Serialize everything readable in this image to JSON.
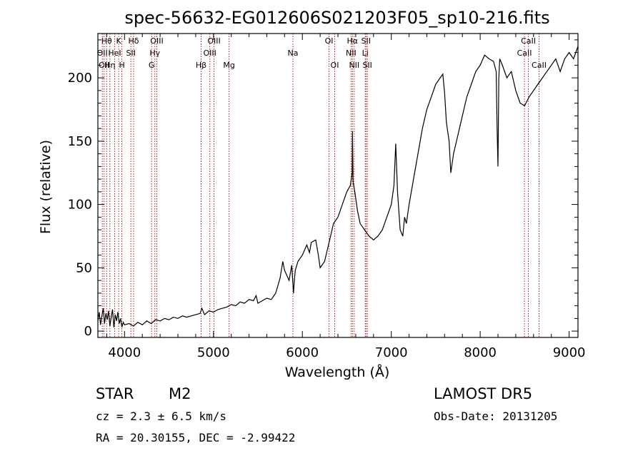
{
  "chart_data": {
    "type": "line",
    "title": "spec-56632-EG012606S021203F05_sp10-216.fits",
    "xlabel": "Wavelength (Å)",
    "ylabel": "Flux (relative)",
    "xlim": [
      3700,
      9100
    ],
    "ylim": [
      -5,
      235
    ],
    "xticks": [
      4000,
      5000,
      6000,
      7000,
      8000,
      9000
    ],
    "yticks": [
      0,
      50,
      100,
      150,
      200
    ],
    "grid": false,
    "series": [
      {
        "color": "#000000",
        "x": [
          3700,
          3715,
          3730,
          3745,
          3760,
          3775,
          3790,
          3805,
          3820,
          3835,
          3850,
          3865,
          3880,
          3895,
          3910,
          3925,
          3940,
          3955,
          3970,
          3985,
          4000,
          4050,
          4100,
          4150,
          4200,
          4250,
          4300,
          4350,
          4400,
          4450,
          4500,
          4550,
          4600,
          4650,
          4700,
          4750,
          4800,
          4850,
          4870,
          4900,
          4950,
          5000,
          5050,
          5100,
          5150,
          5200,
          5250,
          5300,
          5350,
          5400,
          5450,
          5480,
          5500,
          5550,
          5600,
          5650,
          5700,
          5750,
          5780,
          5800,
          5850,
          5880,
          5900,
          5910,
          5920,
          5950,
          6000,
          6050,
          6080,
          6100,
          6150,
          6180,
          6200,
          6250,
          6300,
          6350,
          6400,
          6450,
          6500,
          6540,
          6560,
          6563,
          6570,
          6590,
          6620,
          6650,
          6700,
          6750,
          6800,
          6850,
          6900,
          6950,
          7000,
          7030,
          7050,
          7070,
          7100,
          7130,
          7150,
          7170,
          7200,
          7250,
          7300,
          7350,
          7400,
          7450,
          7500,
          7550,
          7580,
          7600,
          7620,
          7650,
          7670,
          7700,
          7750,
          7800,
          7850,
          7900,
          7950,
          8000,
          8050,
          8100,
          8150,
          8180,
          8190,
          8200,
          8210,
          8220,
          8250,
          8300,
          8350,
          8400,
          8450,
          8500,
          8550,
          8600,
          8650,
          8700,
          8750,
          8800,
          8850,
          8900,
          8950,
          9000,
          9050,
          9100
        ],
        "y": [
          8,
          15,
          5,
          12,
          18,
          6,
          14,
          9,
          16,
          4,
          11,
          17,
          3,
          13,
          8,
          15,
          6,
          10,
          3,
          7,
          5,
          6,
          4,
          7,
          5,
          8,
          6,
          9,
          8,
          10,
          9,
          11,
          10,
          12,
          11,
          12,
          13,
          14,
          18,
          13,
          16,
          15,
          17,
          18,
          19,
          21,
          20,
          23,
          22,
          25,
          24,
          28,
          22,
          24,
          26,
          25,
          30,
          42,
          55,
          48,
          40,
          52,
          30,
          40,
          48,
          55,
          60,
          68,
          62,
          70,
          72,
          60,
          50,
          55,
          70,
          85,
          90,
          100,
          110,
          115,
          125,
          158,
          118,
          110,
          95,
          85,
          80,
          75,
          72,
          75,
          80,
          90,
          100,
          115,
          148,
          110,
          80,
          75,
          90,
          85,
          100,
          120,
          140,
          160,
          175,
          185,
          195,
          200,
          203,
          188,
          165,
          150,
          125,
          140,
          155,
          170,
          185,
          195,
          205,
          210,
          218,
          215,
          213,
          205,
          160,
          130,
          200,
          215,
          210,
          200,
          205,
          190,
          180,
          178,
          185,
          190,
          195,
          200,
          205,
          210,
          215,
          205,
          215,
          220,
          215,
          225
        ]
      }
    ],
    "line_markers": [
      {
        "x": 3750,
        "labels": [
          "OII"
        ]
      },
      {
        "x": 3770,
        "labels": [
          "OII"
        ]
      },
      {
        "x": 3798,
        "labels": [
          "Hθ"
        ]
      },
      {
        "x": 3835,
        "labels": [
          "Hη"
        ]
      },
      {
        "x": 3889,
        "labels": [
          "HeI"
        ]
      },
      {
        "x": 3934,
        "labels": [
          "K"
        ]
      },
      {
        "x": 3970,
        "labels": [
          "H"
        ]
      },
      {
        "x": 4071,
        "labels": [
          "SII"
        ]
      },
      {
        "x": 4102,
        "labels": [
          "Hδ"
        ]
      },
      {
        "x": 4304,
        "labels": [
          "G"
        ]
      },
      {
        "x": 4341,
        "labels": [
          "Hγ"
        ]
      },
      {
        "x": 4363,
        "labels": [
          "OIII"
        ]
      },
      {
        "x": 4861,
        "labels": [
          "Hβ"
        ]
      },
      {
        "x": 4959,
        "labels": [
          "OIII"
        ]
      },
      {
        "x": 5007,
        "labels": [
          "OIII"
        ]
      },
      {
        "x": 5175,
        "labels": [
          "Mg"
        ]
      },
      {
        "x": 5894,
        "labels": [
          "Na"
        ]
      },
      {
        "x": 6300,
        "labels": [
          "OI"
        ]
      },
      {
        "x": 6364,
        "labels": [
          "OI"
        ]
      },
      {
        "x": 6548,
        "labels": [
          "NII"
        ]
      },
      {
        "x": 6563,
        "labels": [
          "Hα"
        ]
      },
      {
        "x": 6583,
        "labels": [
          "NII"
        ]
      },
      {
        "x": 6707,
        "labels": [
          "Li"
        ]
      },
      {
        "x": 6716,
        "labels": [
          "SII"
        ]
      },
      {
        "x": 6731,
        "labels": [
          "SII"
        ]
      },
      {
        "x": 8498,
        "labels": [
          "CaII"
        ]
      },
      {
        "x": 8542,
        "labels": [
          "CaII"
        ]
      },
      {
        "x": 8662,
        "labels": [
          "CaII"
        ]
      }
    ],
    "marker_labels": [
      {
        "text": "Hθ",
        "x": 3798,
        "row": 0
      },
      {
        "text": "K",
        "x": 3934,
        "row": 0
      },
      {
        "text": "Hδ",
        "x": 4102,
        "row": 0
      },
      {
        "text": "OIII",
        "x": 4363,
        "row": 0
      },
      {
        "text": "OIII",
        "x": 5007,
        "row": 0
      },
      {
        "text": "OI",
        "x": 6300,
        "row": 0
      },
      {
        "text": "Hα",
        "x": 6563,
        "row": 0
      },
      {
        "text": "SII",
        "x": 6716,
        "row": 0
      },
      {
        "text": "CaII",
        "x": 8542,
        "row": 0
      },
      {
        "text": "OII",
        "x": 3750,
        "row": 1
      },
      {
        "text": "HeI",
        "x": 3889,
        "row": 1
      },
      {
        "text": "SII",
        "x": 4071,
        "row": 1
      },
      {
        "text": "Hγ",
        "x": 4341,
        "row": 1
      },
      {
        "text": "OIII",
        "x": 4959,
        "row": 1
      },
      {
        "text": "NII",
        "x": 6548,
        "row": 1
      },
      {
        "text": "Li",
        "x": 6707,
        "row": 1
      },
      {
        "text": "CaII",
        "x": 8498,
        "row": 1
      },
      {
        "text": "OII",
        "x": 3770,
        "row": 2
      },
      {
        "text": "Hη",
        "x": 3835,
        "row": 2
      },
      {
        "text": "H",
        "x": 3970,
        "row": 2
      },
      {
        "text": "G",
        "x": 4304,
        "row": 2
      },
      {
        "text": "Hβ",
        "x": 4861,
        "row": 2
      },
      {
        "text": "Mg",
        "x": 5175,
        "row": 2
      },
      {
        "text": "Na",
        "x": 5894,
        "row": 1
      },
      {
        "text": "OI",
        "x": 6364,
        "row": 2
      },
      {
        "text": "NII",
        "x": 6583,
        "row": 2
      },
      {
        "text": "SII",
        "x": 6731,
        "row": 2
      },
      {
        "text": "CaII",
        "x": 8662,
        "row": 2
      }
    ],
    "marker_color": "#b00000"
  },
  "info": {
    "object_type": "STAR",
    "subclass": "M2",
    "survey": "LAMOST DR5",
    "cz": "cz = 2.3 ± 6.5 km/s",
    "obs_date": "Obs-Date: 20131205",
    "coords": "RA =  20.30155, DEC =  -2.99422"
  }
}
